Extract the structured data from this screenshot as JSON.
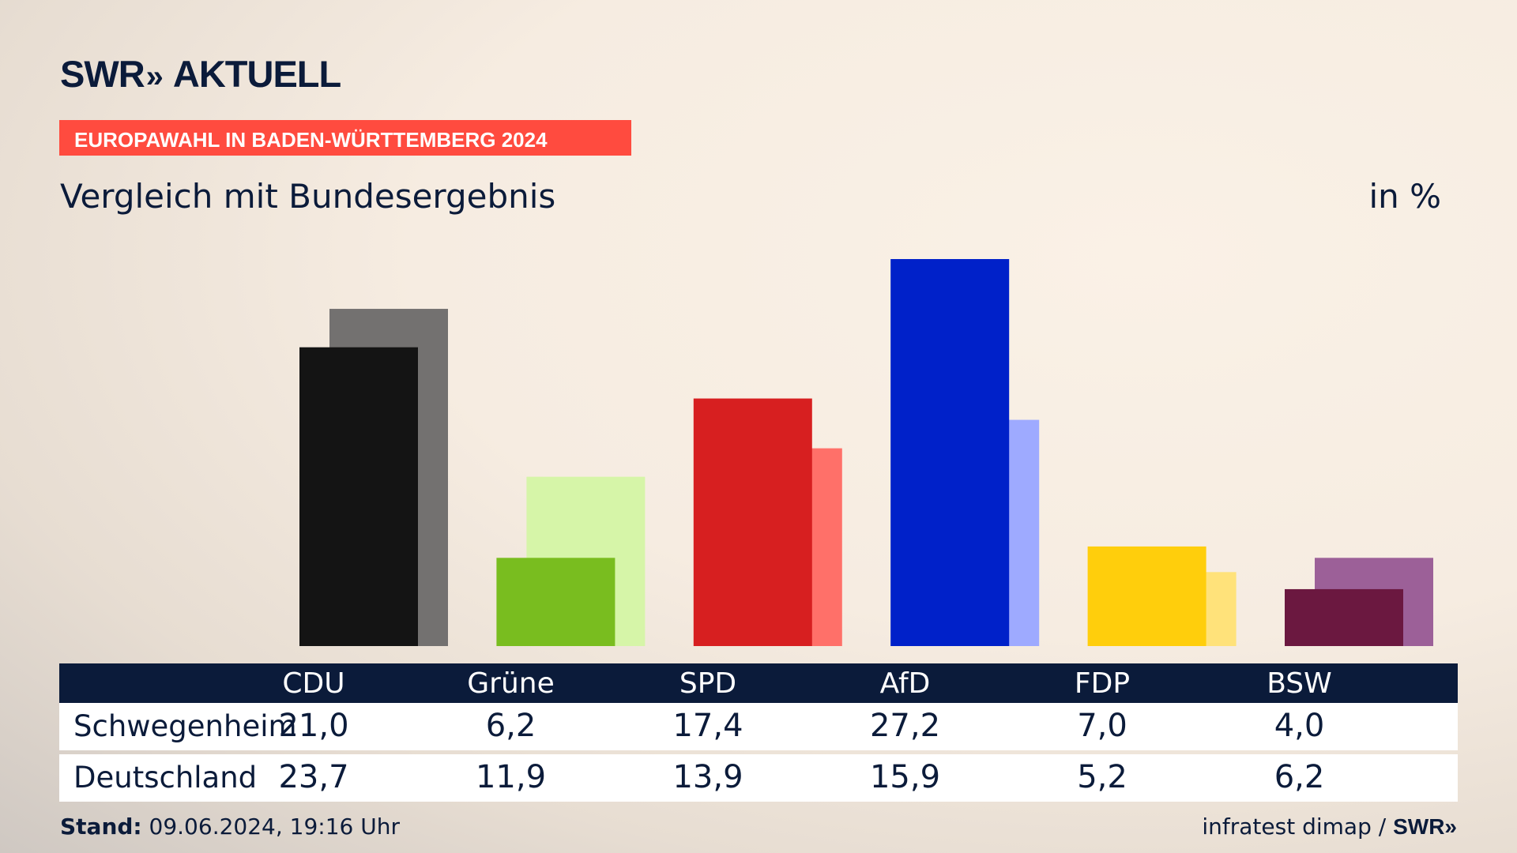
{
  "header": {
    "brand": "SWR",
    "brand_arrows": "»",
    "brand_suffix": "AKTUELL",
    "banner": "EUROPAWAHL IN BADEN-WÜRTTEMBERG 2024",
    "subtitle": "Vergleich mit Bundesergebnis",
    "unit": "in %"
  },
  "table": {
    "parties": [
      "CDU",
      "Grüne",
      "SPD",
      "AfD",
      "FDP",
      "BSW"
    ],
    "rows": [
      {
        "label": "Schwegenheim",
        "values": [
          "21,0",
          "6,2",
          "17,4",
          "27,2",
          "7,0",
          "4,0"
        ]
      },
      {
        "label": "Deutschland",
        "values": [
          "23,7",
          "11,9",
          "13,9",
          "15,9",
          "5,2",
          "6,2"
        ]
      }
    ]
  },
  "footer": {
    "stand_label": "Stand:",
    "stand_value": "09.06.2024, 19:16 Uhr",
    "source": "infratest dimap",
    "separator": "/",
    "brand": "SWR»"
  },
  "chart_data": {
    "type": "bar",
    "categories": [
      "CDU",
      "Grüne",
      "SPD",
      "AfD",
      "FDP",
      "BSW"
    ],
    "series": [
      {
        "name": "Schwegenheim",
        "values": [
          21.0,
          6.2,
          17.4,
          27.2,
          7.0,
          4.0
        ]
      },
      {
        "name": "Deutschland",
        "values": [
          23.7,
          11.9,
          13.9,
          15.9,
          5.2,
          6.2
        ]
      }
    ],
    "colors": {
      "primary": [
        "#141414",
        "#79bd1f",
        "#d71f20",
        "#0021c9",
        "#ffce0c",
        "#6b1840"
      ],
      "secondary": [
        "#737170",
        "#d6f5a8",
        "#ff7069",
        "#9eaaff",
        "#ffe27a",
        "#9c6098"
      ]
    },
    "ylim": [
      0,
      30
    ],
    "grid": false,
    "legend": "none"
  }
}
